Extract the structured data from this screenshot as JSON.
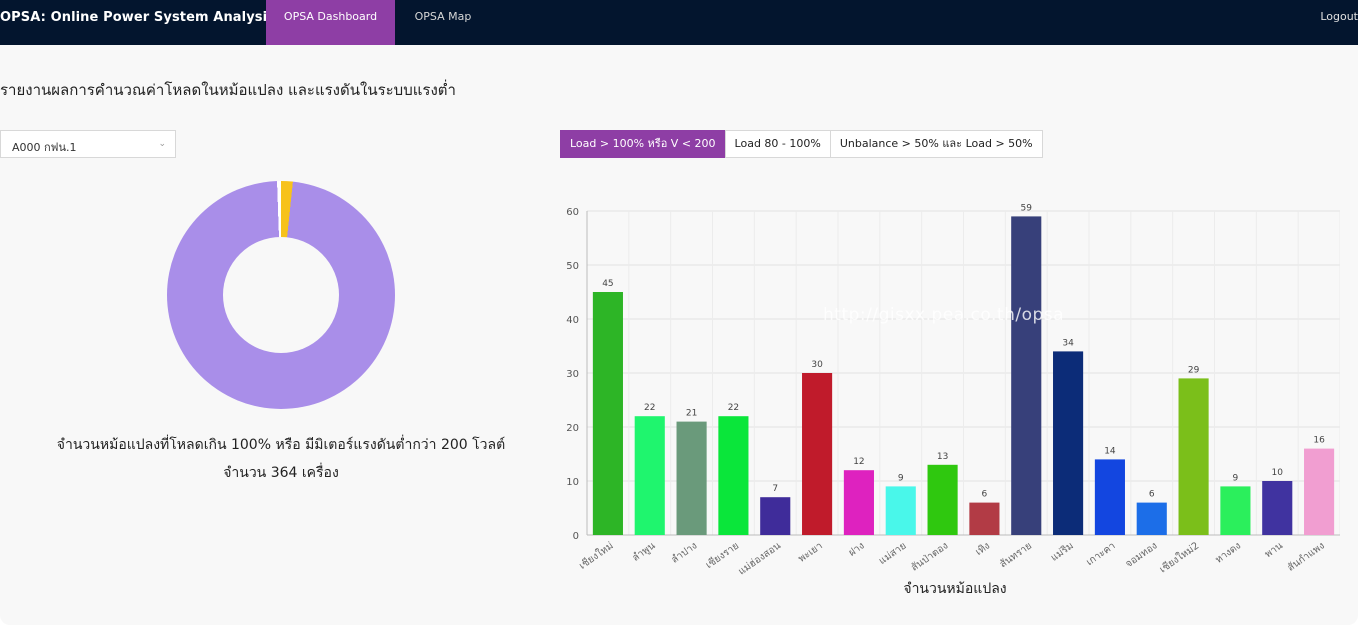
{
  "navbar": {
    "brand": "OPSA: Online Power System Analysis",
    "tabs": [
      {
        "label": "OPSA Dashboard",
        "active": true
      },
      {
        "label": "OPSA Map",
        "active": false
      }
    ],
    "logout_label": "Logout"
  },
  "page_title": "รายงานผลการคำนวณค่าโหลดในหม้อแปลง และแรงดันในระบบแรงต่ำ",
  "area_select": {
    "value": "A000 กฟน.1"
  },
  "filters": [
    {
      "label": "Load > 100% หรือ V < 200",
      "active": true
    },
    {
      "label": "Load 80 - 100%",
      "active": false
    },
    {
      "label": "Unbalance > 50% และ Load > 50%",
      "active": false
    }
  ],
  "summary": {
    "line1": "จำนวนหม้อแปลงที่โหลดเกิน 100% หรือ มีมิเตอร์แรงดันต่ำกว่า 200 โวลต์",
    "line2": "จำนวน 364 เครื่อง"
  },
  "watermark": "http://gisxx.pea.co.th/opsa",
  "colors": {
    "navbar_bg": "#03152e",
    "accent": "#8e3ea5",
    "donut_main": "#a98ee9",
    "donut_minor": "#f7c21b"
  },
  "chart_data": [
    {
      "type": "pie",
      "style": "donut",
      "values": [
        1.5,
        98.5
      ],
      "colors": [
        "#f7c21b",
        "#a98ee9"
      ]
    },
    {
      "type": "bar",
      "categories": [
        "เชียงใหม่",
        "ลำพูน",
        "ลำปาง",
        "เชียงราย",
        "แม่ฮ่องสอน",
        "พะเยา",
        "ฝาง",
        "แม่สาย",
        "สันป่าตอง",
        "เทิง",
        "สันทราย",
        "แม่ริม",
        "เกาะคา",
        "จอมทอง",
        "เชียงใหม่2",
        "หางดง",
        "พาน",
        "สันกำแพง"
      ],
      "values": [
        45,
        22,
        21,
        22,
        7,
        30,
        12,
        9,
        13,
        6,
        59,
        34,
        14,
        6,
        29,
        9,
        10,
        16
      ],
      "colors": [
        "#2db526",
        "#1ff56e",
        "#6a9a7b",
        "#0ae63a",
        "#3f2c9a",
        "#c01b2b",
        "#de22bf",
        "#49f7ea",
        "#2fc80f",
        "#b23b45",
        "#37407a",
        "#0c2c78",
        "#1346e0",
        "#1c6ee8",
        "#7bbf1a",
        "#2bef5c",
        "#4033a0",
        "#f19ed1"
      ],
      "data_labels": true,
      "ylim": [
        0,
        60
      ],
      "yticks": [
        0,
        10,
        20,
        30,
        40,
        50,
        60
      ],
      "xlabel": "จำนวนหม้อแปลง",
      "grid": true
    }
  ]
}
